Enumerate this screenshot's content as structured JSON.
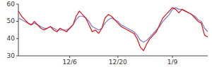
{
  "chart_data": {
    "type": "line",
    "categories": [
      null,
      null,
      null,
      null,
      null,
      null,
      null,
      null,
      null,
      null,
      null,
      null,
      null,
      null,
      null,
      null,
      "12/6",
      null,
      null,
      null,
      null,
      null,
      null,
      null,
      null,
      null,
      null,
      null,
      null,
      null,
      null,
      "12/20",
      null,
      null,
      null,
      null,
      null,
      null,
      null,
      null,
      null,
      null,
      null,
      null,
      null,
      null,
      null,
      null,
      "1/9",
      null,
      null,
      null,
      null,
      null,
      null,
      null,
      null,
      null,
      null,
      null
    ],
    "series": [
      {
        "color": "#7777cc",
        "values": [
          52,
          51,
          50,
          49,
          48,
          49,
          48,
          47,
          46,
          46,
          47,
          46,
          45,
          45,
          45,
          45,
          46,
          48,
          51,
          53,
          53,
          52,
          50,
          47,
          46,
          45,
          46,
          49,
          51,
          52,
          51,
          50,
          48,
          47,
          46,
          45,
          44,
          42,
          39,
          38,
          39,
          41,
          43,
          45,
          47,
          50,
          52,
          54,
          57,
          58,
          57,
          57,
          56,
          55,
          54,
          53,
          51,
          50,
          46,
          44
        ]
      },
      {
        "color": "#dd1111",
        "values": [
          56,
          53,
          51,
          49,
          48,
          50,
          48,
          46,
          45,
          46,
          47,
          45,
          44,
          46,
          45,
          44,
          46,
          48,
          53,
          56,
          54,
          52,
          48,
          44,
          45,
          43,
          46,
          52,
          54,
          53,
          51,
          49,
          47,
          46,
          45,
          44,
          43,
          40,
          35,
          33,
          37,
          40,
          42,
          44,
          48,
          52,
          54,
          56,
          58,
          57,
          55,
          57,
          56,
          55,
          54,
          52,
          50,
          49,
          42,
          41
        ]
      }
    ],
    "ylim": [
      30,
      60
    ],
    "yticks": [
      30,
      40,
      50,
      60
    ],
    "grid": false
  }
}
